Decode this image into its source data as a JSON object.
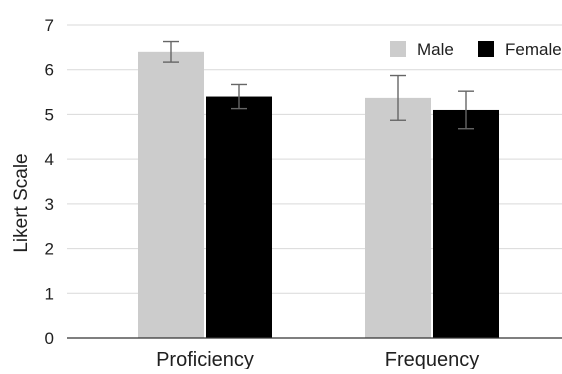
{
  "chart_data": {
    "type": "bar",
    "title": "",
    "xlabel": "",
    "ylabel": "Likert Scale",
    "ylim": [
      0,
      7
    ],
    "yticks": [
      0,
      1,
      2,
      3,
      4,
      5,
      6,
      7
    ],
    "grid": true,
    "legend_position": "top-right",
    "categories": [
      "Proficiency",
      "Frequency"
    ],
    "series": [
      {
        "name": "Male",
        "color": "#cccccc",
        "values": [
          6.4,
          5.37
        ],
        "error": [
          0.23,
          0.5
        ]
      },
      {
        "name": "Female",
        "color": "#000000",
        "values": [
          5.4,
          5.1
        ],
        "error": [
          0.27,
          0.42
        ]
      }
    ],
    "error_bar_color": "#666666"
  }
}
